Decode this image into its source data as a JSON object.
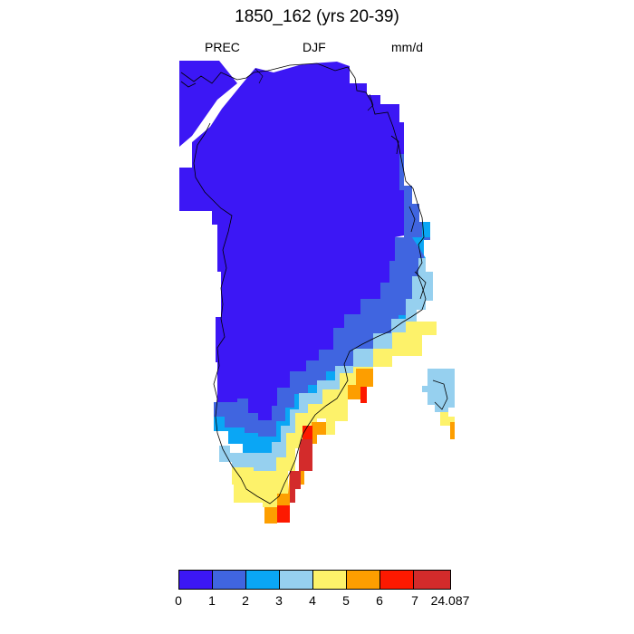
{
  "header": {
    "title": "1850_162 (yrs 20-39)",
    "left": "PREC",
    "center": "DJF",
    "right": "mm/d"
  },
  "colorbar": {
    "colors": [
      "#3c17f5",
      "#4065e0",
      "#0aa6f5",
      "#96d0ef",
      "#fdf26a",
      "#fd9e00",
      "#fd1900",
      "#d32b2b"
    ],
    "labels": [
      "0",
      "1",
      "2",
      "3",
      "4",
      "5",
      "6",
      "7",
      "24.087"
    ]
  }
}
